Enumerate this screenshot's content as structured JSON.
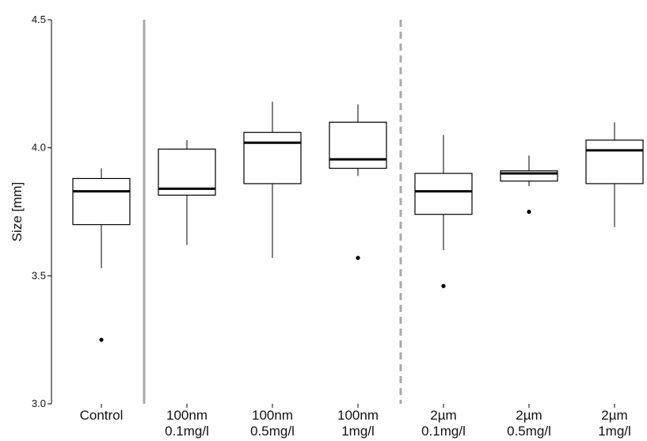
{
  "chart_data": {
    "type": "boxplot",
    "title": "",
    "xlabel": "",
    "ylabel": "Size [mm]",
    "ylim": [
      3.0,
      4.5
    ],
    "yticks": [
      "3.0",
      "3.5",
      "4.0",
      "4.5"
    ],
    "yticks_values": [
      3.0,
      3.5,
      4.0,
      4.5
    ],
    "grid": false,
    "legend": "none",
    "categories": [
      {
        "line1": "Control",
        "line2": ""
      },
      {
        "line1": "100nm",
        "line2": "0.1mg/l"
      },
      {
        "line1": "100nm",
        "line2": "0.5mg/l"
      },
      {
        "line1": "100nm",
        "line2": "1mg/l"
      },
      {
        "line1": "2µm",
        "line2": "0.1mg/l"
      },
      {
        "line1": "2µm",
        "line2": "0.5mg/l"
      },
      {
        "line1": "2µm",
        "line2": "1mg/l"
      }
    ],
    "boxes": [
      {
        "whisker_low": 3.53,
        "q1": 3.7,
        "median": 3.83,
        "q3": 3.88,
        "whisker_high": 3.92,
        "outliers": [
          3.25
        ]
      },
      {
        "whisker_low": 3.62,
        "q1": 3.815,
        "median": 3.84,
        "q3": 3.995,
        "whisker_high": 4.03,
        "outliers": []
      },
      {
        "whisker_low": 3.57,
        "q1": 3.86,
        "median": 4.02,
        "q3": 4.06,
        "whisker_high": 4.18,
        "outliers": []
      },
      {
        "whisker_low": 3.89,
        "q1": 3.92,
        "median": 3.955,
        "q3": 4.1,
        "whisker_high": 4.17,
        "outliers": [
          3.57
        ]
      },
      {
        "whisker_low": 3.6,
        "q1": 3.74,
        "median": 3.83,
        "q3": 3.9,
        "whisker_high": 4.05,
        "outliers": [
          3.46
        ]
      },
      {
        "whisker_low": 3.85,
        "q1": 3.87,
        "median": 3.9,
        "q3": 3.91,
        "whisker_high": 3.97,
        "outliers": [
          3.75
        ]
      },
      {
        "whisker_low": 3.69,
        "q1": 3.86,
        "median": 3.99,
        "q3": 4.03,
        "whisker_high": 4.1,
        "outliers": []
      }
    ],
    "separators": [
      {
        "between": [
          0,
          1
        ],
        "style": "solid",
        "color": "#aaaaaa"
      },
      {
        "between": [
          3,
          4
        ],
        "style": "dashed",
        "color": "#aaaaaa"
      }
    ],
    "colors": {
      "box_stroke": "#000000",
      "box_fill": "#ffffff",
      "median": "#000000",
      "axis": "#000000"
    }
  }
}
